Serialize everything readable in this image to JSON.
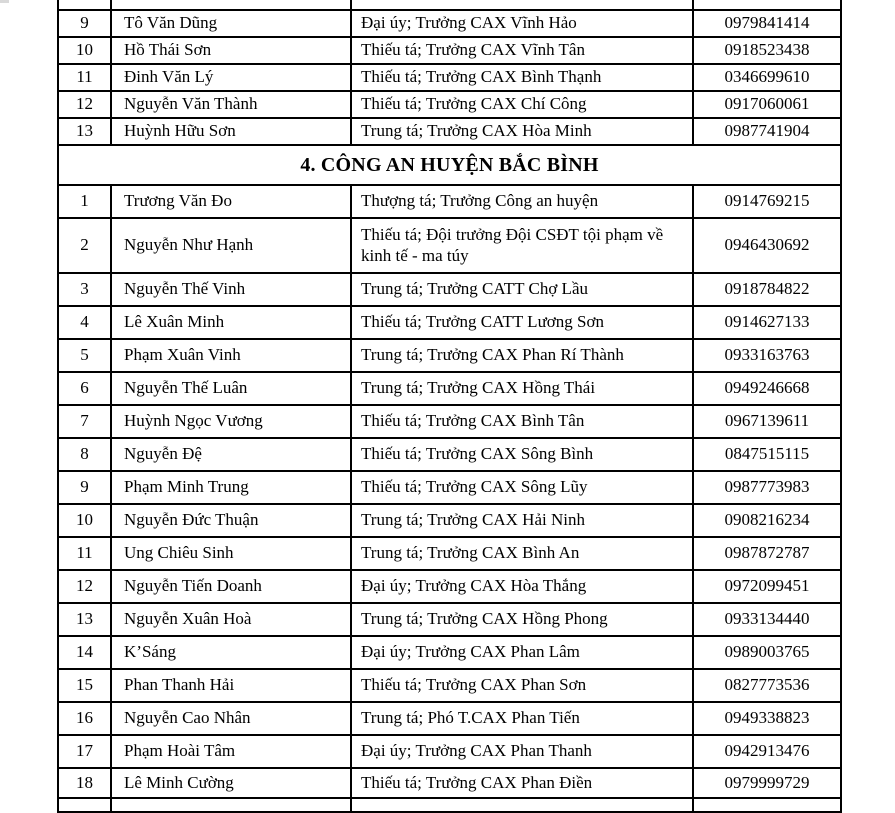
{
  "document": {
    "colors": {
      "background": "#ffffff",
      "text": "#000000",
      "border": "#000000"
    },
    "section_header": "4. CÔNG AN HUYỆN BẮC BÌNH",
    "previous_section_rows": [
      {
        "no": "9",
        "name": "Tô Văn Dũng",
        "position": "Đại úy; Trưởng CAX Vĩnh Hảo",
        "phone": "0979841414"
      },
      {
        "no": "10",
        "name": "Hồ Thái Sơn",
        "position": "Thiếu tá; Trưởng CAX Vĩnh Tân",
        "phone": "0918523438"
      },
      {
        "no": "11",
        "name": "Đinh Văn Lý",
        "position": "Thiếu tá; Trưởng CAX Bình Thạnh",
        "phone": "0346699610"
      },
      {
        "no": "12",
        "name": "Nguyễn Văn Thành",
        "position": "Thiếu tá; Trưởng CAX Chí Công",
        "phone": "0917060061"
      },
      {
        "no": "13",
        "name": "Huỳnh Hữu Sơn",
        "position": "Trung tá; Trưởng CAX Hòa Minh",
        "phone": "0987741904"
      }
    ],
    "section_rows": [
      {
        "no": "1",
        "name": "Trương Văn Đo",
        "position": "Thượng tá; Trưởng Công an huyện",
        "phone": "0914769215"
      },
      {
        "no": "2",
        "name": "Nguyễn Như Hạnh",
        "position": "Thiếu tá; Đội trưởng Đội CSĐT tội phạm về kinh tế - ma túy",
        "phone": "0946430692"
      },
      {
        "no": "3",
        "name": "Nguyễn Thế Vinh",
        "position": "Trung tá; Trưởng CATT Chợ Lầu",
        "phone": "0918784822"
      },
      {
        "no": "4",
        "name": "Lê Xuân Minh",
        "position": "Thiếu tá; Trưởng CATT Lương Sơn",
        "phone": "0914627133"
      },
      {
        "no": "5",
        "name": "Phạm Xuân Vinh",
        "position": "Trung tá; Trưởng CAX Phan Rí Thành",
        "phone": "0933163763"
      },
      {
        "no": "6",
        "name": "Nguyễn Thế Luân",
        "position": "Trung tá; Trưởng CAX Hồng Thái",
        "phone": "0949246668"
      },
      {
        "no": "7",
        "name": "Huỳnh Ngọc Vương",
        "position": "Thiếu tá; Trưởng CAX Bình Tân",
        "phone": "0967139611"
      },
      {
        "no": "8",
        "name": "Nguyễn Đệ",
        "position": "Thiếu tá; Trưởng CAX Sông Bình",
        "phone": "0847515115"
      },
      {
        "no": "9",
        "name": "Phạm Minh Trung",
        "position": "Thiếu tá; Trưởng CAX Sông Lũy",
        "phone": "0987773983"
      },
      {
        "no": "10",
        "name": "Nguyễn Đức Thuận",
        "position": "Trung tá; Trưởng CAX Hải Ninh",
        "phone": "0908216234"
      },
      {
        "no": "11",
        "name": "Ung Chiêu Sinh",
        "position": "Trung tá; Trưởng CAX Bình An",
        "phone": "0987872787"
      },
      {
        "no": "12",
        "name": "Nguyễn Tiến Doanh",
        "position": "Đại úy; Trưởng CAX Hòa Thắng",
        "phone": "0972099451"
      },
      {
        "no": "13",
        "name": "Nguyễn Xuân Hoà",
        "position": "Trung tá; Trưởng CAX Hồng Phong",
        "phone": "0933134440"
      },
      {
        "no": "14",
        "name": "K’Sáng",
        "position": "Đại úy; Trưởng CAX Phan Lâm",
        "phone": "0989003765"
      },
      {
        "no": "15",
        "name": "Phan Thanh Hải",
        "position": "Thiếu tá; Trưởng CAX Phan Sơn",
        "phone": "0827773536"
      },
      {
        "no": "16",
        "name": "Nguyễn Cao Nhân",
        "position": "Trung tá; Phó T.CAX Phan Tiến",
        "phone": "0949338823"
      },
      {
        "no": "17",
        "name": "Phạm Hoài Tâm",
        "position": "Đại úy; Trưởng CAX Phan Thanh",
        "phone": "0942913476"
      },
      {
        "no": "18",
        "name": "Lê Minh Cường",
        "position": "Thiếu tá; Trưởng CAX Phan Điền",
        "phone": "0979999729"
      }
    ]
  }
}
